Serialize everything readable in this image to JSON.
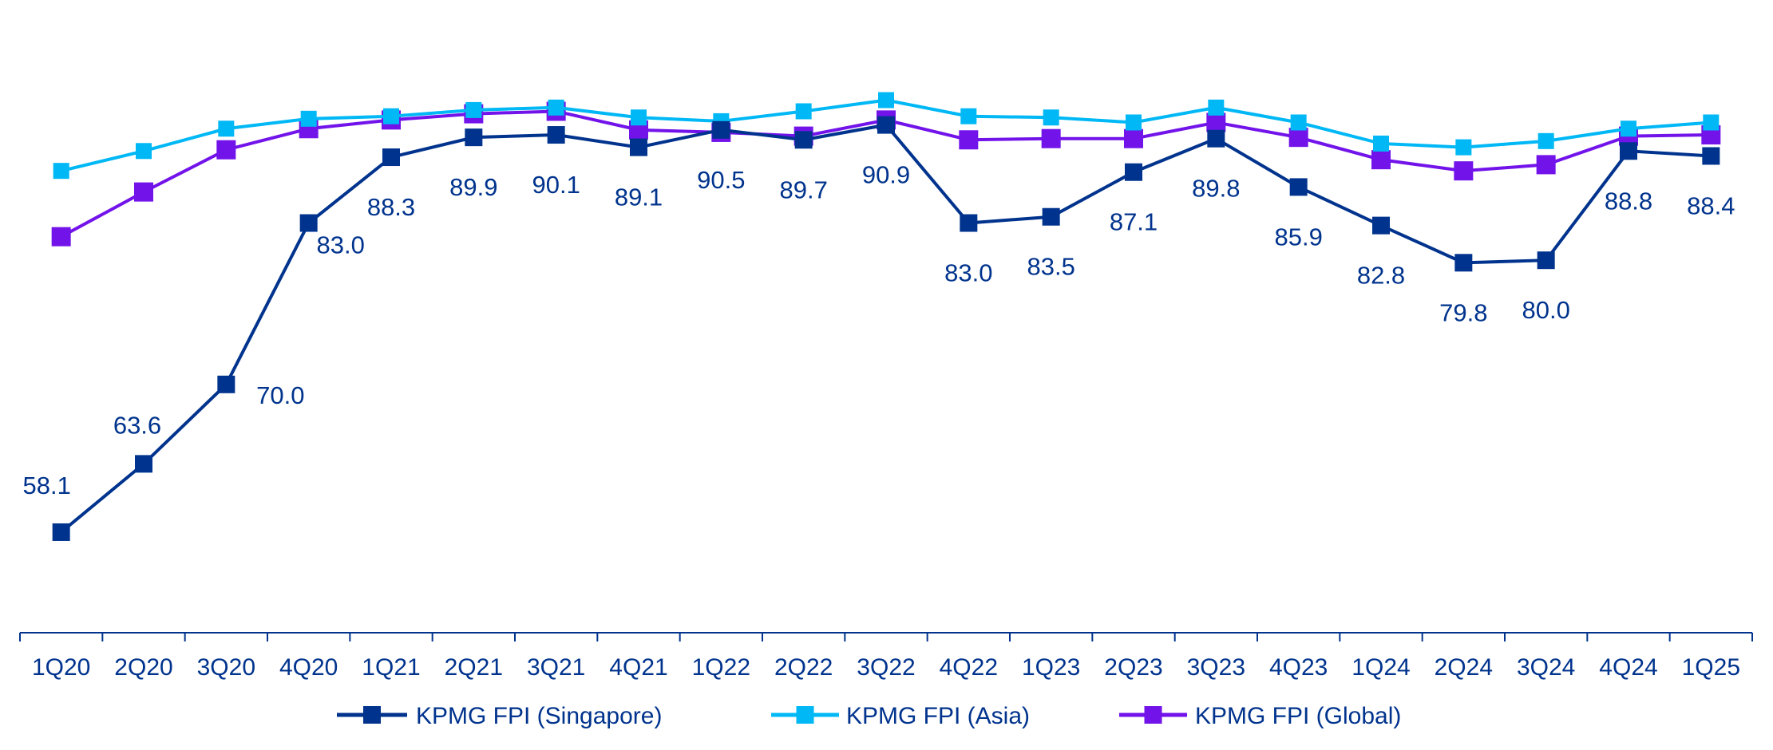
{
  "chart_data": {
    "type": "line",
    "title": "",
    "xlabel": "",
    "ylabel": "",
    "ylim": [
      50,
      100
    ],
    "grid": false,
    "legend_position": "bottom",
    "categories": [
      "1Q20",
      "2Q20",
      "3Q20",
      "4Q20",
      "1Q21",
      "2Q21",
      "3Q21",
      "4Q21",
      "1Q22",
      "2Q22",
      "3Q22",
      "4Q22",
      "1Q23",
      "2Q23",
      "3Q23",
      "4Q23",
      "1Q24",
      "2Q24",
      "3Q24",
      "4Q24",
      "1Q25"
    ],
    "series": [
      {
        "name": "KPMG FPI (Singapore)",
        "color": "#00338D",
        "labeled": true,
        "values": [
          58.1,
          63.6,
          70.0,
          83.0,
          88.3,
          89.9,
          90.1,
          89.1,
          90.5,
          89.7,
          90.9,
          83.0,
          83.5,
          87.1,
          89.8,
          85.9,
          82.8,
          79.8,
          80.0,
          88.8,
          88.4
        ],
        "labels": [
          "58.1",
          "63.6",
          "70.0",
          "83.0",
          "88.3",
          "89.9",
          "90.1",
          "89.1",
          "90.5",
          "89.7",
          "90.9",
          "83.0",
          "83.5",
          "87.1",
          "89.8",
          "85.9",
          "82.8",
          "79.8",
          "80.0",
          "88.8",
          "88.4"
        ]
      },
      {
        "name": "KPMG FPI (Asia)",
        "color": "#00B8F5",
        "labeled": false,
        "values": [
          87.2,
          88.8,
          90.6,
          91.4,
          91.6,
          92.1,
          92.3,
          91.5,
          91.2,
          92.0,
          92.9,
          91.6,
          91.5,
          91.1,
          92.3,
          91.1,
          89.4,
          89.1,
          89.6,
          90.6,
          91.1
        ]
      },
      {
        "name": "KPMG FPI (Global)",
        "color": "#7213EA",
        "labeled": false,
        "values": [
          81.9,
          85.5,
          88.9,
          90.6,
          91.3,
          91.8,
          92.0,
          90.5,
          90.3,
          90.0,
          91.3,
          89.7,
          89.8,
          89.8,
          91.1,
          89.9,
          88.1,
          87.2,
          87.7,
          90.0,
          90.1
        ]
      }
    ]
  }
}
